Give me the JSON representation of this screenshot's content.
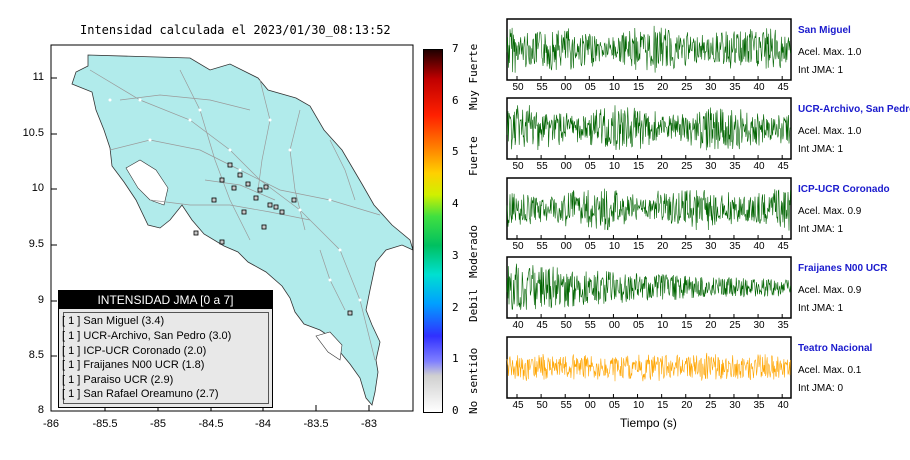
{
  "map_title": "Intensidad calculada el 2023/01/30_08:13:52",
  "legend": {
    "title": "INTENSIDAD JMA [0 a 7]",
    "entries": [
      "[ 1 ] San Miguel (3.4)",
      "[ 1 ] UCR-Archivo, San Pedro (3.0)",
      "[ 1 ] ICP-UCR Coronado (2.0)",
      "[ 1 ] Fraijanes N00 UCR (1.8)",
      "[ 1 ] Paraiso UCR (2.9)",
      "[ 1 ] San Rafael Oreamuno (2.7)"
    ]
  },
  "colorbar": {
    "ticks": [
      "0",
      "1",
      "2",
      "3",
      "4",
      "5",
      "6",
      "7"
    ],
    "labels": [
      "No sentido",
      "Debil",
      "Moderado",
      "Fuerte",
      "Muy Fuerte"
    ]
  },
  "chart_data": [
    {
      "type": "map",
      "x_ticks": [
        "-86",
        "-85.5",
        "-85",
        "-84.5",
        "-84",
        "-83.5",
        "-83"
      ],
      "y_ticks": [
        "8",
        "8.5",
        "9",
        "9.5",
        "10",
        "10.5",
        "11"
      ],
      "xlim": [
        -86,
        -82.8
      ],
      "ylim": [
        8,
        11.3
      ],
      "colors": {
        "land": "#b1ebeb",
        "water": "#ffffff",
        "roads": "#999999"
      }
    },
    {
      "type": "line",
      "xlabel": "Tiempo (s)",
      "traces": [
        {
          "name": "San Miguel",
          "acel": "Acel. Max. 1.0",
          "int": "Int JMA: 1",
          "color": "#006400",
          "ticks": [
            "50",
            "55",
            "00",
            "05",
            "10",
            "15",
            "20",
            "25",
            "30",
            "35",
            "40",
            "45"
          ]
        },
        {
          "name": "UCR-Archivo, San Pedro",
          "acel": "Acel. Max. 1.0",
          "int": "Int JMA: 1",
          "color": "#006400",
          "ticks": [
            "50",
            "55",
            "00",
            "05",
            "10",
            "15",
            "20",
            "25",
            "30",
            "35",
            "40",
            "45"
          ]
        },
        {
          "name": "ICP-UCR Coronado",
          "acel": "Acel. Max. 0.9",
          "int": "Int JMA: 1",
          "color": "#006400",
          "ticks": [
            "50",
            "55",
            "00",
            "05",
            "10",
            "15",
            "20",
            "25",
            "30",
            "35",
            "40",
            "45"
          ]
        },
        {
          "name": "Fraijanes N00 UCR",
          "acel": "Acel. Max. 0.9",
          "int": "Int JMA: 1",
          "color": "#006400",
          "ticks": [
            "40",
            "45",
            "50",
            "55",
            "00",
            "05",
            "10",
            "15",
            "20",
            "25",
            "30",
            "35"
          ]
        },
        {
          "name": "Teatro Nacional",
          "acel": "Acel. Max. 0.1",
          "int": "Int JMA: 0",
          "color": "#ffa500",
          "ticks": [
            "45",
            "50",
            "55",
            "00",
            "05",
            "10",
            "15",
            "20",
            "25",
            "30",
            "35",
            "40"
          ]
        }
      ]
    }
  ]
}
